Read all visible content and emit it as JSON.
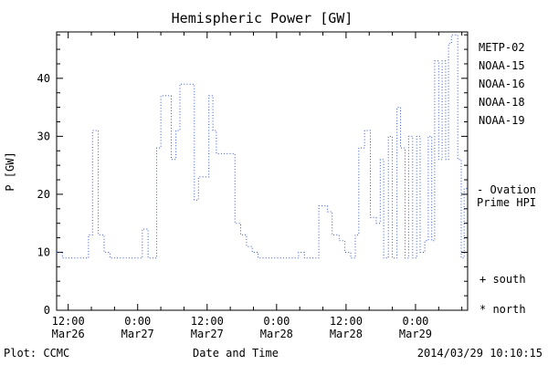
{
  "title": "Hemispheric Power [GW]",
  "ylabel": "P [GW]",
  "xlabel": "Date and Time",
  "footer": {
    "plot_credit": "Plot: CCMC",
    "timestamp": "2014/03/29 10:10:15"
  },
  "legend": {
    "items": [
      {
        "label": "METP-02",
        "color": "#000000"
      },
      {
        "label": "NOAA-15",
        "color": "#2233cc"
      },
      {
        "label": "NOAA-16",
        "color": "#22bbcc"
      },
      {
        "label": "NOAA-18",
        "color": "#55cc66"
      },
      {
        "label": "NOAA-19",
        "color": "#ee9933"
      }
    ]
  },
  "annotations": {
    "ovation_line1": "- Ovation",
    "ovation_line2": "Prime HPI",
    "ovation_color": "#2244cc",
    "south_marker": "+ south",
    "north_marker": "* north"
  },
  "chart_data": {
    "type": "line",
    "line_style": "dotted-step",
    "line_color": "#3355cc",
    "title": "Hemispheric Power [GW]",
    "xlabel": "Date and Time",
    "ylabel": "P [GW]",
    "x_unit": "hours since 2014-03-26 00:00",
    "xlim": [
      10,
      81
    ],
    "ylim": [
      0,
      48
    ],
    "grid": false,
    "legend_position": "right-outside",
    "y_ticks_major": [
      0,
      10,
      20,
      30,
      40
    ],
    "y_tick_minor_step": 2.5,
    "x_tick_minor_step": 4,
    "x_ticks_major": [
      {
        "hour": 12,
        "time": "12:00",
        "date": "Mar26"
      },
      {
        "hour": 24,
        "time": "0:00",
        "date": "Mar27"
      },
      {
        "hour": 36,
        "time": "12:00",
        "date": "Mar27"
      },
      {
        "hour": 48,
        "time": "0:00",
        "date": "Mar28"
      },
      {
        "hour": 60,
        "time": "12:00",
        "date": "Mar28"
      },
      {
        "hour": 72,
        "time": "0:00",
        "date": "Mar29"
      }
    ],
    "series": [
      {
        "name": "Ovation Prime HPI",
        "x": [
          10,
          11,
          15.5,
          16.2,
          17.2,
          18.2,
          19.2,
          24.8,
          25.8,
          27.3,
          28,
          29.8,
          30.6,
          31.3,
          33.8,
          34.5,
          36.3,
          37,
          37.6,
          40.8,
          41.8,
          42.8,
          43.8,
          44.8,
          51.8,
          52.8,
          55.3,
          56.8,
          57.6,
          58.8,
          59.8,
          60.8,
          61.6,
          62.2,
          63.2,
          64.2,
          65.2,
          65.9,
          66.5,
          67.3,
          68,
          68.8,
          69.4,
          70.2,
          70.8,
          71.5,
          72.2,
          72.8,
          73.6,
          74.2,
          74.8,
          75.3,
          76,
          76.6,
          77.2,
          77.7,
          78.2,
          79.3,
          79.9,
          80.4
        ],
        "y": [
          10,
          9,
          13,
          31,
          13,
          10,
          9,
          14,
          9,
          28,
          37,
          26,
          31,
          39,
          19,
          23,
          37,
          31,
          27,
          15,
          13,
          11,
          10,
          9,
          10,
          9,
          18,
          17,
          13,
          12,
          10,
          9,
          13,
          28,
          31,
          16,
          15,
          26,
          9,
          30,
          9,
          35,
          28,
          9,
          30,
          9,
          30,
          10,
          12,
          30,
          12,
          43,
          26,
          43,
          26,
          46,
          47.5,
          26,
          9,
          21
        ]
      }
    ]
  }
}
